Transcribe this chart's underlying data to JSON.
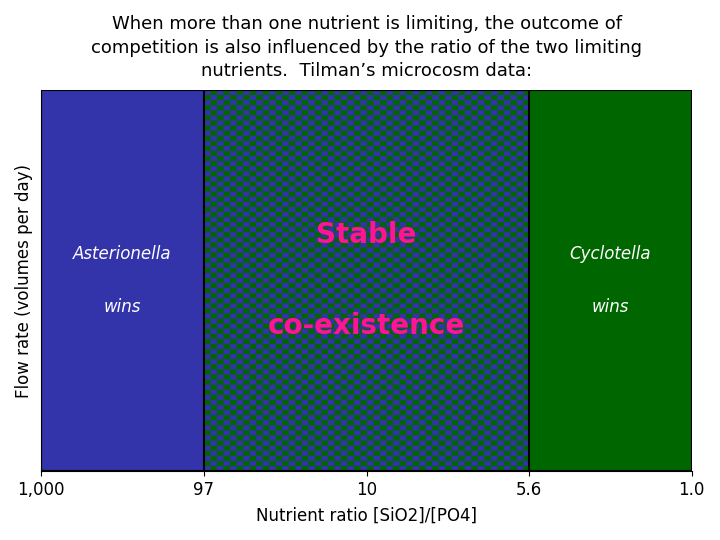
{
  "title": "When more than one nutrient is limiting, the outcome of\ncompetition is also influenced by the ratio of the two limiting\nnutrients.  Tilman’s microcosm data:",
  "xlabel": "Nutrient ratio [SiO2]/[PO4]",
  "ylabel": "Flow rate (volumes per day)",
  "xtick_labels": [
    "1,000",
    "97",
    "10",
    "5.6",
    "1.0"
  ],
  "xtick_positions": [
    0,
    1,
    2,
    3,
    4
  ],
  "region1_label_line1": "Asterionella",
  "region1_label_line2": "wins",
  "region2_label_line1": "Stable",
  "region2_label_line2": "co-existence",
  "region3_label_line1": "Cyclotella",
  "region3_label_line2": "wins",
  "region1_color": "#3333AA",
  "region3_color": "#006600",
  "checker_color1": "#3333AA",
  "checker_color2": "#006600",
  "region1_text_color": "white",
  "region2_text_color": "#FF1493",
  "region3_text_color": "white",
  "title_fontsize": 13,
  "axis_label_fontsize": 12,
  "background_color": "white",
  "region1_xstart": 0,
  "region1_xend": 1,
  "region2_xstart": 1,
  "region2_xend": 3,
  "region3_xstart": 3,
  "region3_xend": 4
}
